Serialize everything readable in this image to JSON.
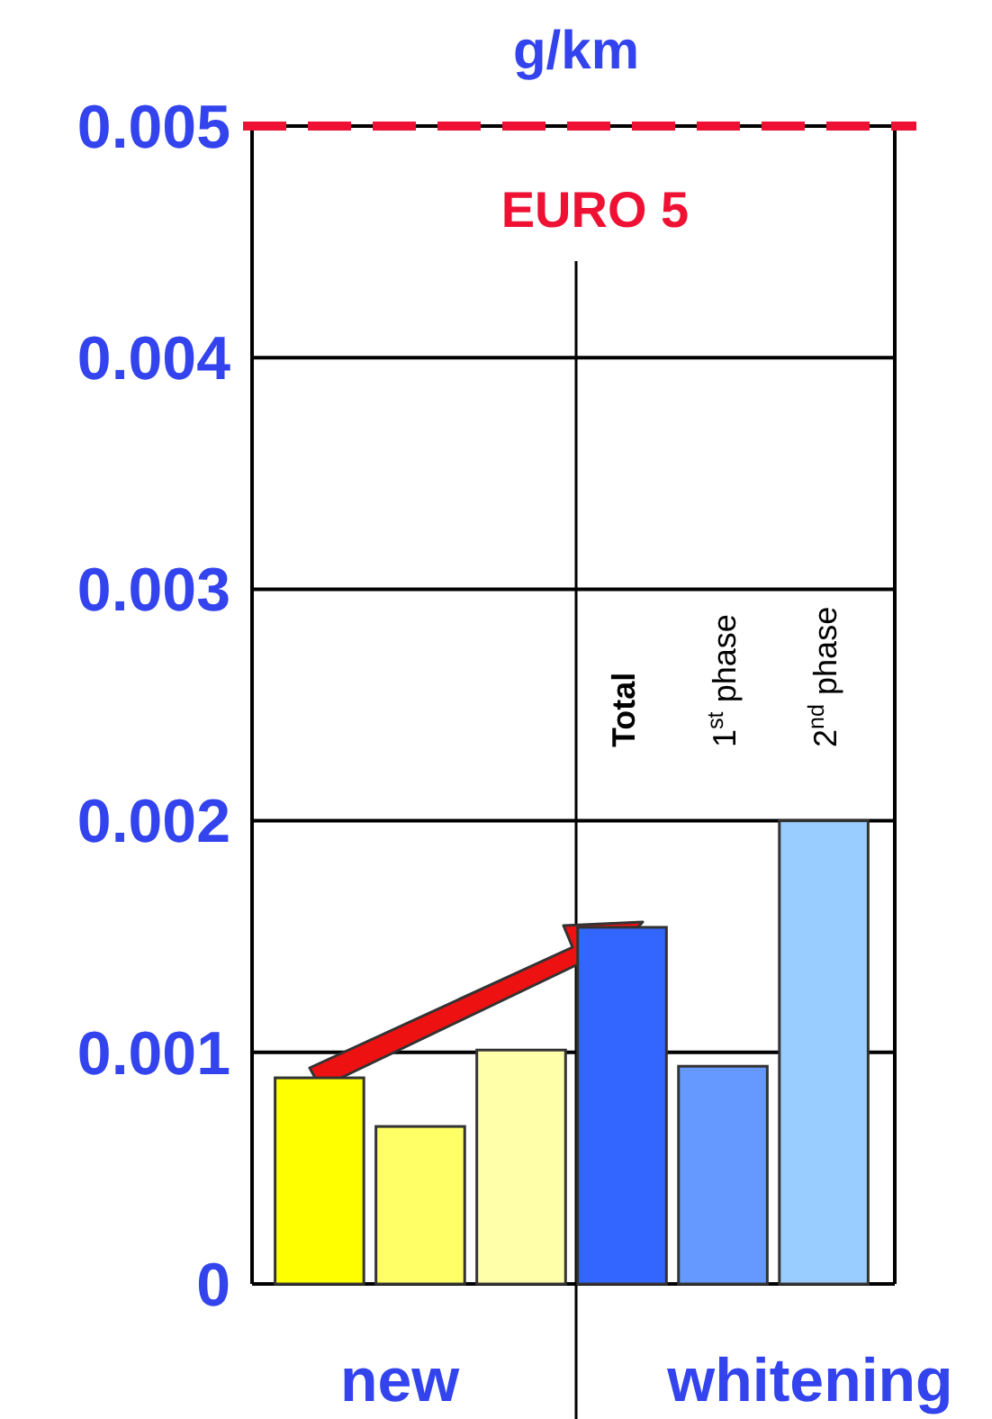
{
  "chart_data": {
    "type": "bar",
    "title": "g/km",
    "categories": [
      null,
      null,
      null,
      "Total",
      "1$^{st}$ phase",
      "2$^{nd}$ phase"
    ],
    "values": [
      0.00089,
      0.00068,
      0.00101,
      0.00154,
      0.00094,
      0.002
    ],
    "colors": [
      "#ffff00",
      "#ffff66",
      "#ffffaa",
      "#3366ff",
      "#6699ff",
      "#99ccff"
    ],
    "ylim": [
      0,
      0.005
    ],
    "yticks": [
      0,
      0.001,
      0.002,
      0.003,
      0.004,
      0.005
    ],
    "grid": "y",
    "ref_lines": [
      {
        "axis": "y",
        "value": 0.005,
        "label": "EURO 5",
        "color": "#ee1133",
        "line_style": "dashed"
      }
    ],
    "annotations": [
      "new",
      "whitening"
    ]
  }
}
